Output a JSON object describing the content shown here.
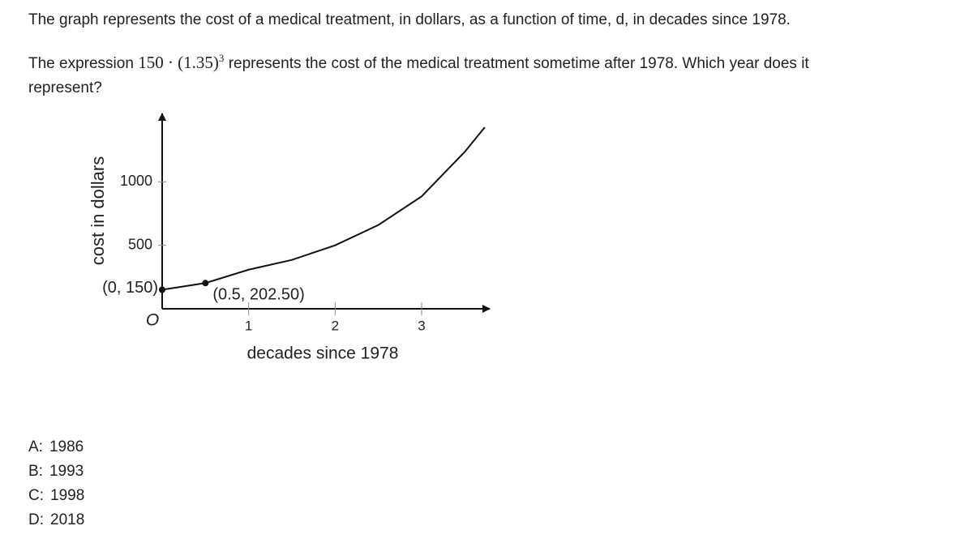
{
  "question": {
    "line1": "The graph represents the cost of a medical treatment, in dollars, as a function of time, d, in decades since 1978.",
    "before": "The expression",
    "expression": {
      "base": "150 · (1.35)",
      "exponent": "3"
    },
    "after": "represents the cost of the medical treatment sometime after 1978. Which year does it represent?"
  },
  "graph": {
    "type": "line",
    "xlabel": "decades since 1978",
    "ylabel": "cost in dollars",
    "origin_label": "O",
    "xlim": [
      0,
      3.75
    ],
    "ylim": [
      0,
      1500
    ],
    "xticks": [
      1,
      2,
      3
    ],
    "yticks": [
      500,
      1000
    ],
    "curve": {
      "x": [
        0,
        0.5,
        1,
        1.5,
        2,
        2.5,
        3,
        3.5,
        3.73
      ],
      "y": [
        150,
        202.5,
        308,
        385,
        500,
        660,
        885,
        1237,
        1430
      ]
    },
    "points": [
      {
        "x": 0,
        "y": 150,
        "label": "(0, 150)"
      },
      {
        "x": 0.5,
        "y": 202.5,
        "label": "(0.5, 202.50)"
      }
    ]
  },
  "choices": [
    {
      "letter": "A:",
      "text": "1986"
    },
    {
      "letter": "B:",
      "text": "1993"
    },
    {
      "letter": "C:",
      "text": "1998"
    },
    {
      "letter": "D:",
      "text": "2018"
    }
  ]
}
